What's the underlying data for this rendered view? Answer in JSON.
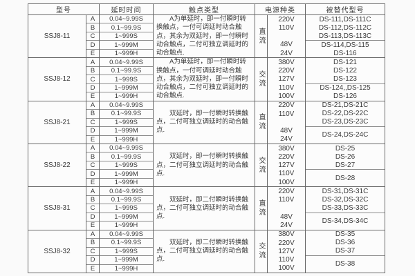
{
  "colors": {
    "background": "#fafafa",
    "table_background": "#fcfcfc",
    "border_major": "#686868",
    "border_minor": "#8c8c8c",
    "text": "#3a3a3a"
  },
  "header": {
    "model": "型号",
    "delay_time": "延时时间",
    "contact_type": "触点类型",
    "power_kind": "电源种类",
    "replaced_model": "被替代型号"
  },
  "sections": [
    {
      "model": "SSJ8-11",
      "rows": [
        {
          "letter": "A",
          "time": "0.04~9.99S"
        },
        {
          "letter": "B",
          "time": "0.1~99.9S"
        },
        {
          "letter": "C",
          "time": "1~999S"
        },
        {
          "letter": "D",
          "time": "1~999M"
        },
        {
          "letter": "E",
          "time": "1~999H"
        }
      ],
      "contact": "A为单延时，即一付瞬时转换触点，一付可调延时动合触点，其余为双延时，即一付瞬时动合触点，二付可独立调延时的动合触点.",
      "power": "直流",
      "voltages": [
        "220V",
        "110V",
        "",
        "48V",
        "24V"
      ],
      "replaced_top": [
        "DS-111,DS-111C",
        "DS-112,DS-112C",
        "DS-113,DS-113C"
      ],
      "replaced_bottom": [
        "DS-114,DS-115",
        "DS-116"
      ]
    },
    {
      "model": "SSJ8-12",
      "rows": [
        {
          "letter": "A",
          "time": "0.04~9.99S"
        },
        {
          "letter": "B",
          "time": "0.1~99.9S"
        },
        {
          "letter": "C",
          "time": "1~999S"
        },
        {
          "letter": "D",
          "time": "1~999M"
        },
        {
          "letter": "E",
          "time": "1~999H"
        }
      ],
      "contact": "A为单延时，即一付瞬时转换触点，一付可调延时动合触点，其余为双延时，即一付瞬时动合触点，二付可独立调延时的动合触点.",
      "power": "交流",
      "voltages": [
        "380V",
        "220V",
        "127V",
        "110V",
        "100V"
      ],
      "replaced_top": [
        "DS-121",
        "DS-122",
        "DS-123"
      ],
      "replaced_bottom": [
        "DS-124,,DS-125",
        "DS-126"
      ]
    },
    {
      "model": "SSJ8-21",
      "rows": [
        {
          "letter": "A",
          "time": "0.04~9.99S"
        },
        {
          "letter": "B",
          "time": "0.1~99.9S"
        },
        {
          "letter": "C",
          "time": "1~999S"
        },
        {
          "letter": "D",
          "time": "1~999M"
        },
        {
          "letter": "E",
          "time": "1~999H"
        }
      ],
      "contact": "双延时，即一付瞬时转换触点，二付可独立调延时的动合触点.",
      "power": "直流",
      "voltages": [
        "220V",
        "110V",
        "",
        "48V",
        "24V"
      ],
      "replaced_top": [
        "DS-21,DS-21C",
        "DS-22,DS-22C",
        "DS-23,DS-23C"
      ],
      "replaced_bottom": [
        "DS-24,DS-24C"
      ]
    },
    {
      "model": "SSJ8-22",
      "rows": [
        {
          "letter": "A",
          "time": "0.04~9.99S"
        },
        {
          "letter": "B",
          "time": "0.1~99.9S"
        },
        {
          "letter": "C",
          "time": "1~999S"
        },
        {
          "letter": "D",
          "time": "1~999M"
        },
        {
          "letter": "E",
          "time": "1~999H"
        }
      ],
      "contact": "双延时，即一付瞬时转换触点，二付可独立调延时的动合触点.",
      "power": "交流",
      "voltages": [
        "380V",
        "220V",
        "127V",
        "110V",
        "100V"
      ],
      "replaced_top": [
        "DS-25",
        "DS-26",
        "DS-27"
      ],
      "replaced_bottom": [
        "DS-28"
      ]
    },
    {
      "model": "SSJ8-31",
      "rows": [
        {
          "letter": "A",
          "time": "0.04~9.99S"
        },
        {
          "letter": "B",
          "time": "0.1~99.9S"
        },
        {
          "letter": "C",
          "time": "1~999S"
        },
        {
          "letter": "D",
          "time": "1~999M"
        },
        {
          "letter": "E",
          "time": "1~999H"
        }
      ],
      "contact": "双延时，即二付瞬时转换触点，二付可独立调延时的动合触点.",
      "power": "直流",
      "voltages": [
        "220V",
        "110V",
        "",
        "48V",
        "24V"
      ],
      "replaced_top": [
        "DS-31,DS-31C",
        "DS-32,DS-32C",
        "DS-33,DS-33C"
      ],
      "replaced_bottom": [
        "DS-34,DS-34C"
      ]
    },
    {
      "model": "SSJ8-32",
      "rows": [
        {
          "letter": "A",
          "time": "0.04~9.99S"
        },
        {
          "letter": "B",
          "time": "0.1~99.9S"
        },
        {
          "letter": "C",
          "time": "1~999S"
        },
        {
          "letter": "D",
          "time": "1~999M"
        },
        {
          "letter": "E",
          "time": "1~999H"
        }
      ],
      "contact": "双延时，即二付瞬时转换触点，二付可独立调延时的动合触点.",
      "power": "交流",
      "voltages": [
        "380V",
        "220V",
        "127V",
        "110V",
        "100V"
      ],
      "replaced_top": [
        "DS-35",
        "DS-36",
        "DS-37"
      ],
      "replaced_bottom": [
        "DS-38"
      ]
    }
  ]
}
